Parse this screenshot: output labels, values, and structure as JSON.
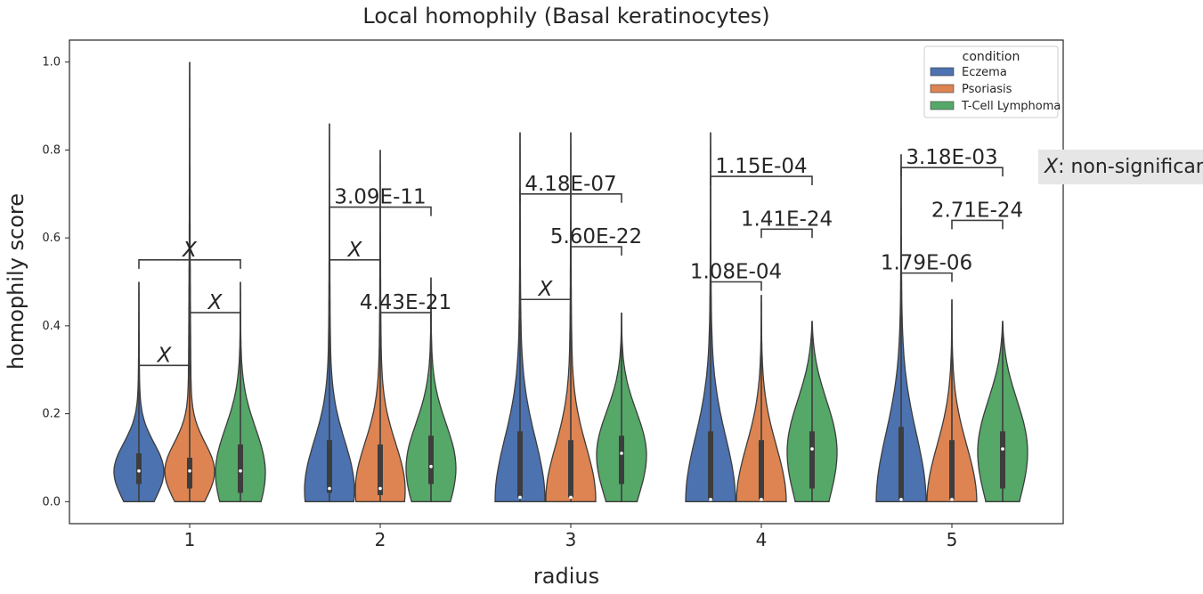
{
  "chart_data": {
    "type": "violin",
    "title": "Local homophily (Basal keratinocytes)",
    "xlabel": "radius",
    "ylabel": "homophily score",
    "categories": [
      "1",
      "2",
      "3",
      "4",
      "5"
    ],
    "ylim": [
      -0.05,
      1.05
    ],
    "yticks": [
      "0.0",
      "0.2",
      "0.4",
      "0.6",
      "0.8",
      "1.0"
    ],
    "grid": false,
    "legend": {
      "title": "condition",
      "position": "top-right",
      "entries": [
        "Eczema",
        "Psoriasis",
        "T-Cell Lymphoma"
      ]
    },
    "note": {
      "symbol": "X",
      "text": ": non-significant"
    },
    "series": [
      {
        "name": "Eczema",
        "color": "#4c72b0",
        "max": [
          0.5,
          0.86,
          0.84,
          0.84,
          0.79
        ],
        "q1": [
          0.04,
          0.02,
          0.01,
          0.005,
          0.005
        ],
        "median": [
          0.07,
          0.03,
          0.01,
          0.005,
          0.005
        ],
        "q3": [
          0.11,
          0.14,
          0.16,
          0.16,
          0.17
        ]
      },
      {
        "name": "Psoriasis",
        "color": "#dd8452",
        "max": [
          1.0,
          0.8,
          0.84,
          0.47,
          0.46
        ],
        "q1": [
          0.03,
          0.015,
          0.01,
          0.005,
          0.005
        ],
        "median": [
          0.07,
          0.03,
          0.01,
          0.005,
          0.005
        ],
        "q3": [
          0.1,
          0.13,
          0.14,
          0.14,
          0.14
        ]
      },
      {
        "name": "T-Cell Lymphoma",
        "color": "#55a868",
        "max": [
          0.5,
          0.51,
          0.43,
          0.41,
          0.41
        ],
        "q1": [
          0.02,
          0.04,
          0.04,
          0.03,
          0.03
        ],
        "median": [
          0.07,
          0.08,
          0.11,
          0.12,
          0.12
        ],
        "q3": [
          0.13,
          0.15,
          0.15,
          0.16,
          0.16
        ]
      }
    ],
    "annotations": [
      {
        "cat": 0,
        "a": 0,
        "b": 1,
        "y": 0.31,
        "label": "X"
      },
      {
        "cat": 0,
        "a": 1,
        "b": 2,
        "y": 0.43,
        "label": "X"
      },
      {
        "cat": 0,
        "a": 0,
        "b": 2,
        "y": 0.55,
        "label": "X"
      },
      {
        "cat": 1,
        "a": 0,
        "b": 1,
        "y": 0.55,
        "label": "X"
      },
      {
        "cat": 1,
        "a": 1,
        "b": 2,
        "y": 0.43,
        "label": "4.43E-21"
      },
      {
        "cat": 1,
        "a": 0,
        "b": 2,
        "y": 0.67,
        "label": "3.09E-11"
      },
      {
        "cat": 2,
        "a": 0,
        "b": 1,
        "y": 0.46,
        "label": "X"
      },
      {
        "cat": 2,
        "a": 1,
        "b": 2,
        "y": 0.58,
        "label": "5.60E-22"
      },
      {
        "cat": 2,
        "a": 0,
        "b": 2,
        "y": 0.7,
        "label": "4.18E-07"
      },
      {
        "cat": 3,
        "a": 0,
        "b": 1,
        "y": 0.5,
        "label": "1.08E-04"
      },
      {
        "cat": 3,
        "a": 1,
        "b": 2,
        "y": 0.62,
        "label": "1.41E-24"
      },
      {
        "cat": 3,
        "a": 0,
        "b": 2,
        "y": 0.74,
        "label": "1.15E-04"
      },
      {
        "cat": 4,
        "a": 0,
        "b": 1,
        "y": 0.52,
        "label": "1.79E-06"
      },
      {
        "cat": 4,
        "a": 1,
        "b": 2,
        "y": 0.64,
        "label": "2.71E-24"
      },
      {
        "cat": 4,
        "a": 0,
        "b": 2,
        "y": 0.76,
        "label": "3.18E-03"
      }
    ]
  }
}
